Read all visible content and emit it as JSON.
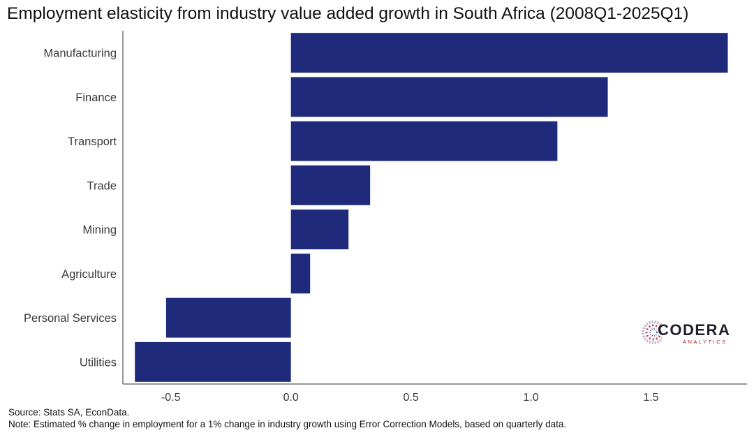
{
  "title": "Employment elasticity from industry value added growth in South Africa (2008Q1-2025Q1)",
  "footer": {
    "source": "Source: Stats SA, EconData.",
    "note": "Note: Estimated % change in employment for a 1% change in industry growth using Error Correction Models, based on quarterly data."
  },
  "logo": {
    "name": "CODERA",
    "subtitle": "ANALYTICS",
    "icon": "codera-logo-icon"
  },
  "colors": {
    "bar": "#1f2a7a",
    "axis": "#333333"
  },
  "chart_data": {
    "type": "bar",
    "orientation": "horizontal",
    "title": "Employment elasticity from industry value added growth in South Africa (2008Q1-2025Q1)",
    "xlabel": "",
    "ylabel": "",
    "categories": [
      "Manufacturing",
      "Finance",
      "Transport",
      "Trade",
      "Mining",
      "Agriculture",
      "Personal Services",
      "Utilities"
    ],
    "values": [
      1.82,
      1.32,
      1.11,
      0.33,
      0.24,
      0.08,
      -0.52,
      -0.65
    ],
    "xlim": [
      -0.7,
      1.9
    ],
    "xticks": [
      -0.5,
      0.0,
      0.5,
      1.0,
      1.5
    ],
    "xtick_labels": [
      "-0.5",
      "0.0",
      "0.5",
      "1.0",
      "1.5"
    ],
    "grid": false,
    "legend": "none"
  }
}
